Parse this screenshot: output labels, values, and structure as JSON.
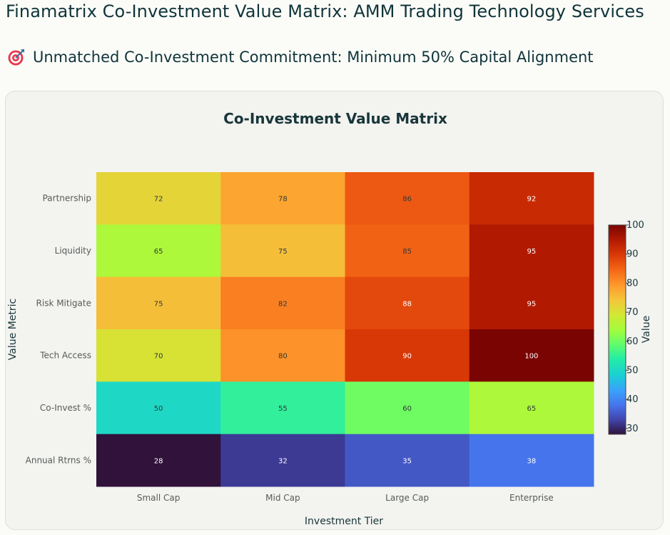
{
  "header": {
    "title": "Finamatrix Co-Investment Value Matrix: AMM Trading Technology Services",
    "subtitle": "Unmatched Co-Investment Commitment: Minimum 50% Capital Alignment",
    "subtitle_icon": "target-icon"
  },
  "chart_data": {
    "type": "heatmap",
    "title": "Co-Investment Value Matrix",
    "xlabel": "Investment Tier",
    "ylabel": "Value Metric",
    "x": [
      "Small Cap",
      "Mid Cap",
      "Large Cap",
      "Enterprise"
    ],
    "y": [
      "Partnership",
      "Liquidity",
      "Risk Mitigate",
      "Tech Access",
      "Co-Invest %",
      "Annual Rtrns %"
    ],
    "z": [
      [
        72,
        78,
        86,
        92
      ],
      [
        65,
        75,
        85,
        95
      ],
      [
        75,
        82,
        88,
        95
      ],
      [
        70,
        80,
        90,
        100
      ],
      [
        50,
        55,
        60,
        65
      ],
      [
        28,
        32,
        35,
        38
      ]
    ],
    "colorscale": "Turbo",
    "zmin": 28,
    "zmax": 100,
    "colorbar": {
      "title": "Value",
      "ticks": [
        30,
        40,
        50,
        60,
        70,
        80,
        90,
        100
      ]
    },
    "show_values": true,
    "grid": false
  }
}
